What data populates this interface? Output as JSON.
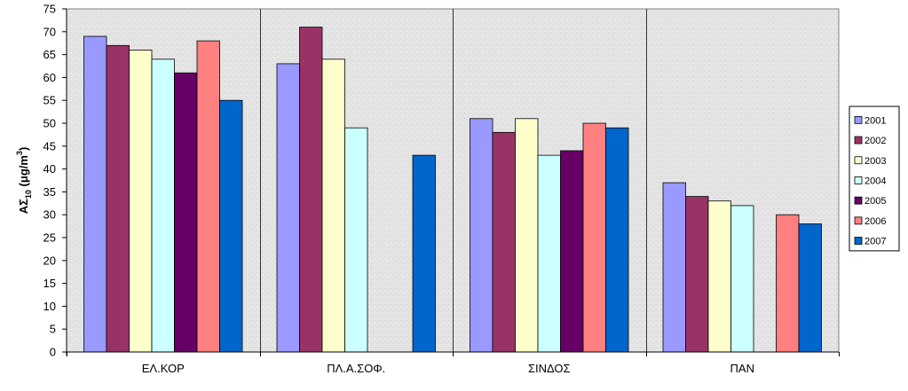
{
  "chart_data": {
    "type": "bar",
    "title": "",
    "xlabel": "",
    "ylabel": {
      "main": "ΑΣ",
      "sub": "10",
      "rest": " (μg/m",
      "sup": "3",
      "close": ")"
    },
    "ylim": [
      0,
      75
    ],
    "yticks": [
      0,
      5,
      10,
      15,
      20,
      25,
      30,
      35,
      40,
      45,
      50,
      55,
      60,
      65,
      70,
      75
    ],
    "grid": false,
    "legend_position": "right",
    "plot_background": "#e6e6e6",
    "categories": [
      "ΕΛ.ΚΟΡ",
      "ΠΛ.Α.ΣΟΦ.",
      "ΣΙΝΔΟΣ",
      "ΠΑΝ"
    ],
    "series": [
      {
        "name": "2001",
        "color": "#9999ff",
        "values": [
          69,
          63,
          51,
          37
        ]
      },
      {
        "name": "2002",
        "color": "#993366",
        "values": [
          67,
          71,
          48,
          34
        ]
      },
      {
        "name": "2003",
        "color": "#ffffcc",
        "values": [
          66,
          64,
          51,
          33
        ]
      },
      {
        "name": "2004",
        "color": "#ccffff",
        "values": [
          64,
          49,
          43,
          32
        ]
      },
      {
        "name": "2005",
        "color": "#660066",
        "values": [
          61,
          null,
          44,
          null
        ]
      },
      {
        "name": "2006",
        "color": "#ff8080",
        "values": [
          68,
          null,
          50,
          30
        ]
      },
      {
        "name": "2007",
        "color": "#0066cc",
        "values": [
          55,
          43,
          49,
          28
        ]
      }
    ]
  }
}
